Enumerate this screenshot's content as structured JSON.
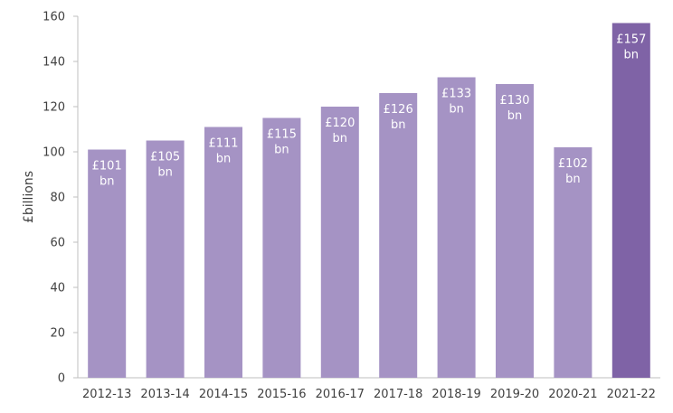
{
  "chart_data": {
    "type": "bar",
    "categories": [
      "2012-13",
      "2013-14",
      "2014-15",
      "2015-16",
      "2016-17",
      "2017-18",
      "2018-19",
      "2019-20",
      "2020-21",
      "2021-22"
    ],
    "values": [
      101,
      105,
      111,
      115,
      120,
      126,
      133,
      130,
      102,
      157
    ],
    "data_labels": [
      [
        "£101",
        "bn"
      ],
      [
        "£105",
        "bn"
      ],
      [
        "£111",
        "bn"
      ],
      [
        "£115",
        "bn"
      ],
      [
        "£120",
        "bn"
      ],
      [
        "£126",
        "bn"
      ],
      [
        "£133",
        "bn"
      ],
      [
        "£130",
        "bn"
      ],
      [
        "£102",
        "bn"
      ],
      [
        "£157",
        "bn"
      ]
    ],
    "ylabel": "£billions",
    "ylim": [
      0,
      160
    ],
    "yticks": [
      0,
      20,
      40,
      60,
      80,
      100,
      120,
      140,
      160
    ],
    "grid": false,
    "colors": {
      "bar": "#a593c4",
      "highlight": "#7f63a6",
      "axis": "#bfbfbf"
    },
    "highlight_index": 9
  }
}
